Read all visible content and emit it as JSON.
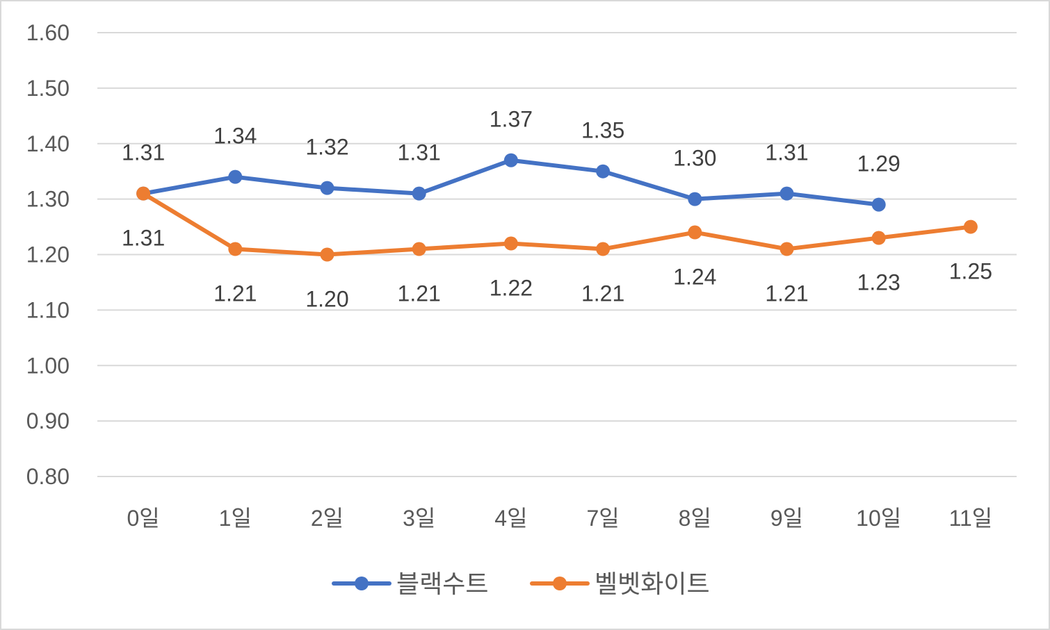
{
  "chart_data": {
    "type": "line",
    "categories": [
      "0일",
      "1일",
      "2일",
      "3일",
      "4일",
      "7일",
      "8일",
      "9일",
      "10일",
      "11일"
    ],
    "series": [
      {
        "name": "블랙수트",
        "color": "#4472C4",
        "values": [
          1.31,
          1.34,
          1.32,
          1.31,
          1.37,
          1.35,
          1.3,
          1.31,
          1.29,
          null
        ],
        "labels": [
          "1.31",
          "1.34",
          "1.32",
          "1.31",
          "1.37",
          "1.35",
          "1.30",
          "1.31",
          "1.29",
          null
        ],
        "label_position": "above"
      },
      {
        "name": "벨벳화이트",
        "color": "#ED7D31",
        "values": [
          1.31,
          1.21,
          1.2,
          1.21,
          1.22,
          1.21,
          1.24,
          1.21,
          1.23,
          1.25
        ],
        "labels": [
          "1.31",
          "1.21",
          "1.20",
          "1.21",
          "1.22",
          "1.21",
          "1.24",
          "1.21",
          "1.23",
          "1.25"
        ],
        "label_position": "below"
      }
    ],
    "y_ticks": [
      "0.80",
      "0.90",
      "1.00",
      "1.10",
      "1.20",
      "1.30",
      "1.40",
      "1.50",
      "1.60"
    ],
    "ylim": [
      0.8,
      1.6
    ],
    "grid": true,
    "legend_position": "bottom",
    "title": "",
    "xlabel": "",
    "ylabel": ""
  }
}
